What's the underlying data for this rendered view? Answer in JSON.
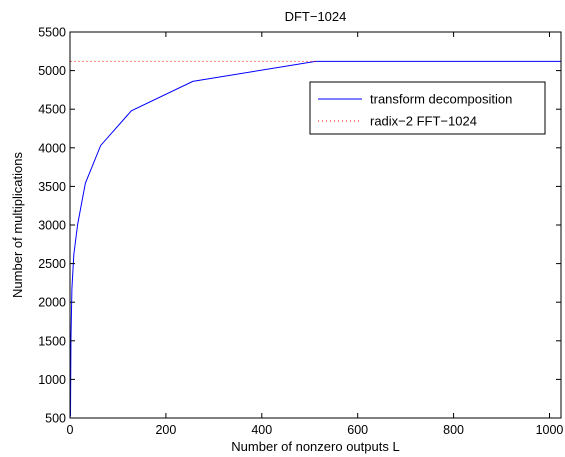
{
  "chart_data": {
    "type": "line",
    "title": "DFT−1024",
    "xlabel": "Number of nonzero outputs L",
    "ylabel": "Number of multiplications",
    "xlim": [
      0,
      1024
    ],
    "ylim": [
      500,
      5500
    ],
    "xticks": [
      0,
      200,
      400,
      600,
      800,
      1000
    ],
    "yticks": [
      500,
      1000,
      1500,
      2000,
      2500,
      3000,
      3500,
      4000,
      4500,
      5000,
      5500
    ],
    "grid": false,
    "legend_position": "top-right",
    "series": [
      {
        "name": "transform decomposition",
        "style": "solid",
        "color": "#0000ff",
        "x": [
          1,
          2,
          4,
          8,
          16,
          32,
          64,
          128,
          256,
          512,
          1024
        ],
        "y": [
          520,
          1530,
          2180,
          2620,
          3010,
          3540,
          4030,
          4480,
          4860,
          5120,
          5120
        ]
      },
      {
        "name": "radix−2 FFT−1024",
        "style": "dotted",
        "color": "#ff0000",
        "x": [
          1,
          512
        ],
        "y": [
          5120,
          5120
        ]
      }
    ]
  }
}
